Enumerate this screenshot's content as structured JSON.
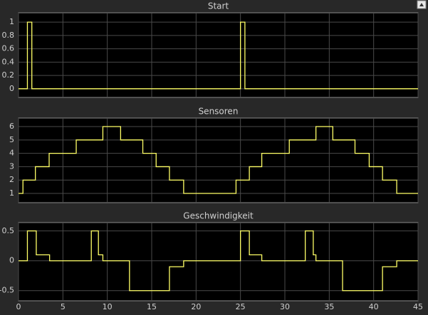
{
  "chart_data": [
    {
      "type": "line",
      "title": "Start",
      "x": [
        0,
        1,
        1,
        1.5,
        1.5,
        25,
        25,
        25.5,
        25.5,
        45
      ],
      "values": [
        0,
        0,
        1,
        1,
        0,
        0,
        1,
        1,
        0,
        0
      ],
      "color": "#ffff66",
      "xlim": [
        0,
        45
      ],
      "xticks": [
        0,
        5,
        10,
        15,
        20,
        25,
        30,
        35,
        40,
        45
      ],
      "xticklabels": false,
      "ylim": [
        -0.13,
        1.14
      ],
      "yticks": [
        0,
        0.2,
        0.4,
        0.6,
        0.8,
        1
      ],
      "grid": true
    },
    {
      "type": "line",
      "title": "Sensoren",
      "x": [
        0,
        0.5,
        0.5,
        1.9,
        1.9,
        3.45,
        3.45,
        6.5,
        6.5,
        9.5,
        9.5,
        11.5,
        11.5,
        14,
        14,
        15.5,
        15.5,
        17,
        17,
        18.6,
        18.6,
        24.5,
        24.5,
        26,
        26,
        27.4,
        27.4,
        30.5,
        30.5,
        33.5,
        33.5,
        35.4,
        35.4,
        37.9,
        37.9,
        39.5,
        39.5,
        41,
        41,
        42.6,
        42.6,
        45
      ],
      "values": [
        1,
        1,
        2,
        2,
        3,
        3,
        4,
        4,
        5,
        5,
        6,
        6,
        5,
        5,
        4,
        4,
        3,
        3,
        2,
        2,
        1,
        1,
        2,
        2,
        3,
        3,
        4,
        4,
        5,
        5,
        6,
        6,
        5,
        5,
        4,
        4,
        3,
        3,
        2,
        2,
        1,
        1
      ],
      "color": "#ffff66",
      "xlim": [
        0,
        45
      ],
      "xticks": [
        0,
        5,
        10,
        15,
        20,
        25,
        30,
        35,
        40,
        45
      ],
      "xticklabels": false,
      "ylim": [
        0.31,
        6.64
      ],
      "yticks": [
        1,
        2,
        3,
        4,
        5,
        6
      ],
      "grid": true
    },
    {
      "type": "line",
      "title": "Geschwindigkeit",
      "x": [
        0,
        1,
        1,
        2,
        2,
        3.5,
        3.5,
        8.2,
        8.2,
        9,
        9,
        9.5,
        9.5,
        12.5,
        12.5,
        17,
        17,
        18.6,
        18.6,
        25,
        25,
        26,
        26,
        27.4,
        27.4,
        32.3,
        32.3,
        33.2,
        33.2,
        33.5,
        33.5,
        36.5,
        36.5,
        41,
        41,
        42.6,
        42.6,
        45
      ],
      "values": [
        0,
        0,
        0.5,
        0.5,
        0.1,
        0.1,
        0,
        0,
        0.5,
        0.5,
        0.1,
        0.1,
        0,
        0,
        -0.5,
        -0.5,
        -0.1,
        -0.1,
        0,
        0,
        0.5,
        0.5,
        0.1,
        0.1,
        0,
        0,
        0.5,
        0.5,
        0.1,
        0.1,
        0,
        0,
        -0.5,
        -0.5,
        -0.1,
        -0.1,
        0,
        0
      ],
      "color": "#ffff66",
      "xlim": [
        0,
        45
      ],
      "xticks": [
        0,
        5,
        10,
        15,
        20,
        25,
        30,
        35,
        40,
        45
      ],
      "xticklabels": true,
      "ylim": [
        -0.67,
        0.64
      ],
      "yticks": [
        -0.5,
        0,
        0.5
      ],
      "grid": true
    }
  ]
}
